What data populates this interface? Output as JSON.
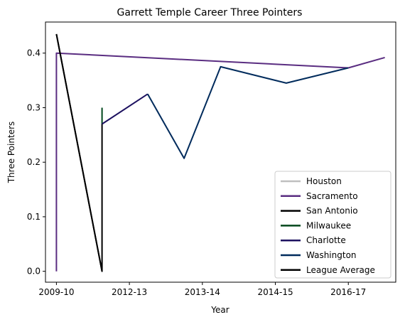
{
  "chart_data": {
    "type": "line",
    "title": "Garrett Temple Career Three Pointers",
    "xlabel": "Year",
    "ylabel": "Three Pointers",
    "x_tick_labels": [
      "2009-10",
      "2012-13",
      "2013-14",
      "2014-15",
      "2016-17"
    ],
    "x_tick_positions": [
      0,
      2,
      4,
      6,
      8
    ],
    "xlim": [
      -0.3,
      9.3
    ],
    "ylim": [
      -0.02,
      0.457
    ],
    "y_ticks": [
      "0.0",
      "0.1",
      "0.2",
      "0.3",
      "0.4"
    ],
    "y_tick_values": [
      0,
      0.1,
      0.2,
      0.3,
      0.4
    ],
    "grid": false,
    "legend_position": "bottom-right",
    "series": [
      {
        "name": "Houston",
        "color": "#bfbfbf",
        "points": [
          [
            0,
            0.0
          ],
          [
            0,
            0.0
          ]
        ]
      },
      {
        "name": "Sacramento",
        "color": "#5a2d81",
        "points": [
          [
            0,
            0.0
          ],
          [
            0,
            0.4
          ],
          [
            8,
            0.373
          ],
          [
            9,
            0.392
          ]
        ]
      },
      {
        "name": "San Antonio",
        "color": "#000000",
        "points": [
          [
            0,
            0.435
          ],
          [
            1.25,
            0.0
          ],
          [
            1.25,
            0.27
          ]
        ]
      },
      {
        "name": "Milwaukee",
        "color": "#00471b",
        "points": [
          [
            1.25,
            0.3
          ],
          [
            1.25,
            0.27
          ]
        ]
      },
      {
        "name": "Charlotte",
        "color": "#1d1160",
        "points": [
          [
            1.25,
            0.27
          ],
          [
            2.5,
            0.325
          ]
        ]
      },
      {
        "name": "Washington",
        "color": "#002b5c",
        "points": [
          [
            2.5,
            0.325
          ],
          [
            3.5,
            0.207
          ],
          [
            4.5,
            0.375
          ],
          [
            6.3,
            0.345
          ],
          [
            8,
            0.373
          ]
        ]
      },
      {
        "name": "League Average",
        "color": "#000000",
        "points": [
          [
            0,
            0.435
          ],
          [
            1.25,
            0.0
          ]
        ]
      }
    ]
  }
}
